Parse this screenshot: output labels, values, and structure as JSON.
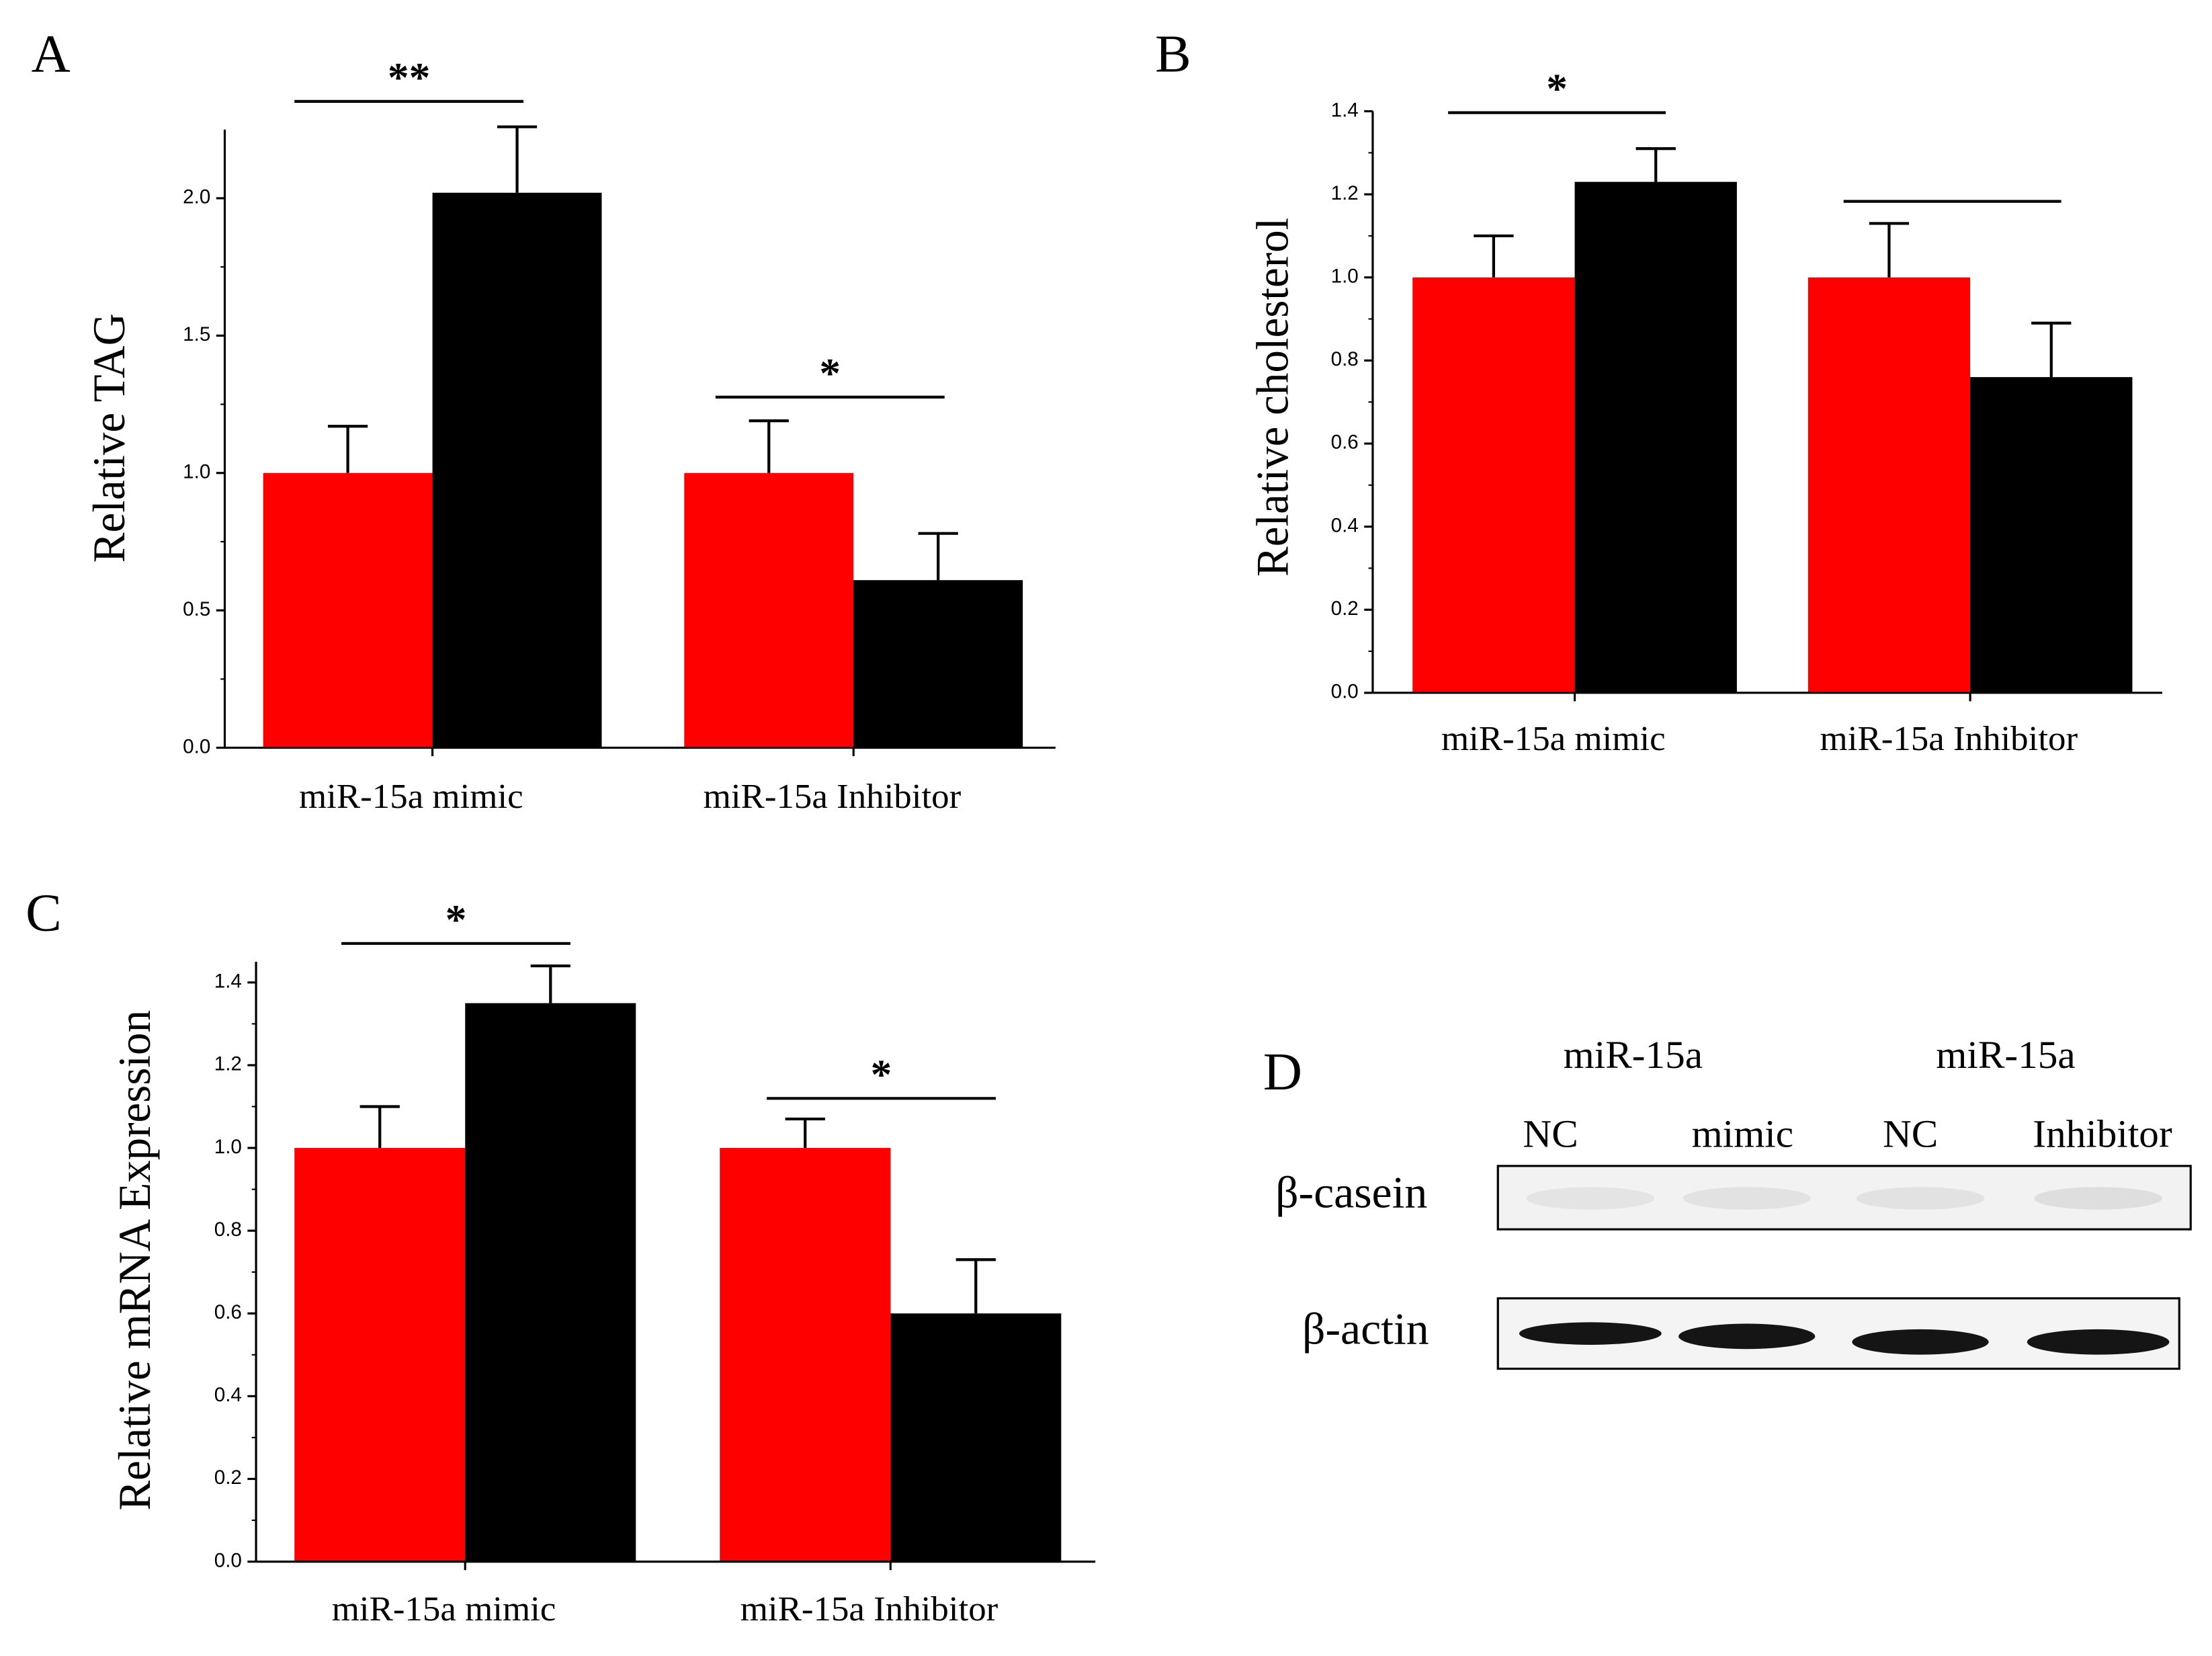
{
  "chart_data": [
    {
      "type": "bar",
      "panel_label": "A",
      "ylabel": "Relative TAG",
      "categories": [
        "miR-15a mimic",
        "miR-15a Inhibitor"
      ],
      "series": [
        {
          "color": "#ff0000",
          "values": [
            1.0,
            1.0
          ],
          "errors": [
            0.17,
            0.19
          ]
        },
        {
          "color": "#000000",
          "values": [
            2.02,
            0.61
          ],
          "errors": [
            0.24,
            0.17
          ]
        }
      ],
      "annotations": [
        "**",
        "*"
      ],
      "ylim": [
        0,
        2.25
      ],
      "yticks": [
        {
          "value": 0,
          "label": "0.0"
        },
        0.5,
        {
          "value": 1,
          "label": "1.0"
        },
        1.5,
        {
          "value": 2,
          "label": "2.0"
        }
      ]
    },
    {
      "type": "bar",
      "panel_label": "B",
      "ylabel": "Relative cholesterol",
      "categories": [
        "miR-15a mimic",
        "miR-15a Inhibitor"
      ],
      "series": [
        {
          "color": "#ff0000",
          "values": [
            1.0,
            1.0
          ],
          "errors": [
            0.1,
            0.13
          ]
        },
        {
          "color": "#000000",
          "values": [
            1.23,
            0.76
          ],
          "errors": [
            0.08,
            0.13
          ]
        }
      ],
      "annotations": [
        "*",
        null
      ],
      "ylim": [
        0,
        1.4
      ],
      "yticks": [
        {
          "value": 0,
          "label": "0.0"
        },
        0.2,
        0.4,
        0.6,
        0.8,
        {
          "value": 1,
          "label": "1.0"
        },
        1.2,
        1.4
      ]
    },
    {
      "type": "bar",
      "panel_label": "C",
      "ylabel": "Relative mRNA Expression",
      "categories": [
        "miR-15a mimic",
        "miR-15a Inhibitor"
      ],
      "series": [
        {
          "color": "#ff0000",
          "values": [
            1.0,
            1.0
          ],
          "errors": [
            0.1,
            0.07
          ]
        },
        {
          "color": "#000000",
          "values": [
            1.35,
            0.6
          ],
          "errors": [
            0.09,
            0.13
          ]
        }
      ],
      "annotations": [
        "*",
        "*"
      ],
      "ylim": [
        0,
        1.45
      ],
      "yticks": [
        {
          "value": 0,
          "label": "0.0"
        },
        0.2,
        0.4,
        0.6,
        0.8,
        {
          "value": 1,
          "label": "1.0"
        },
        1.2,
        1.4
      ]
    }
  ],
  "blot": {
    "label": "D",
    "groups": [
      "miR-15a",
      "miR-15a"
    ],
    "lanes": [
      "NC",
      "mimic",
      "NC",
      "Inhibitor"
    ],
    "proteins": [
      "β-casein",
      "β-actin"
    ]
  }
}
